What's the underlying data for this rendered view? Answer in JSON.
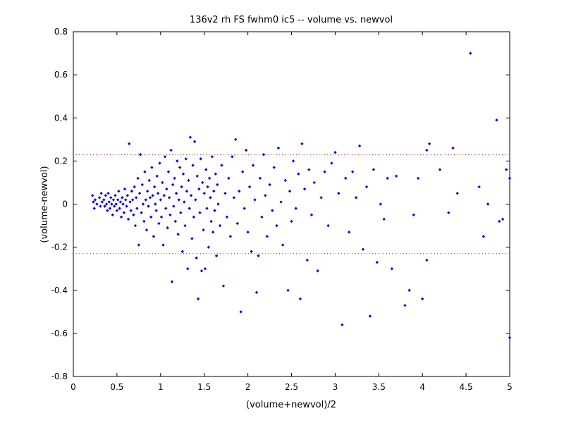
{
  "chart_data": {
    "type": "scatter",
    "title": "136v2 rh FS fwhm0 ic5 -- volume vs. newvol",
    "xlabel": "(volume+newvol)/2",
    "ylabel": "(volume-newvol)",
    "xlim": [
      0,
      5
    ],
    "ylim": [
      -0.8,
      0.8
    ],
    "xticks": [
      0,
      0.5,
      1,
      1.5,
      2,
      2.5,
      3,
      3.5,
      4,
      4.5,
      5
    ],
    "xtick_labels": [
      "0",
      "0.5",
      "1",
      "1.5",
      "2",
      "2.5",
      "3",
      "3.5",
      "4",
      "4.5",
      "5"
    ],
    "yticks": [
      -0.8,
      -0.6,
      -0.4,
      -0.2,
      0,
      0.2,
      0.4,
      0.6,
      0.8
    ],
    "ytick_labels": [
      "-0.8",
      "-0.6",
      "-0.4",
      "-0.2",
      "0",
      "0.2",
      "0.4",
      "0.6",
      "0.8"
    ],
    "grid": false,
    "marker_color": "#0000ff",
    "reference_lines": [
      {
        "y": 0.23,
        "style": "dotted",
        "color": "#ff0000"
      },
      {
        "y": -0.23,
        "style": "dotted",
        "color": "#ff0000"
      }
    ],
    "series": [
      {
        "points": [
          [
            0.22,
            0.04
          ],
          [
            0.23,
            0.01
          ],
          [
            0.24,
            -0.02
          ],
          [
            0.25,
            0.02
          ],
          [
            0.27,
            0.0
          ],
          [
            0.3,
            0.03
          ],
          [
            0.31,
            -0.01
          ],
          [
            0.32,
            0.05
          ],
          [
            0.33,
            0.01
          ],
          [
            0.35,
            0.02
          ],
          [
            0.36,
            -0.01
          ],
          [
            0.37,
            0.04
          ],
          [
            0.38,
            0.0
          ],
          [
            0.39,
            -0.03
          ],
          [
            0.4,
            0.05
          ],
          [
            0.41,
            0.01
          ],
          [
            0.42,
            -0.02
          ],
          [
            0.43,
            0.03
          ],
          [
            0.44,
            0.0
          ],
          [
            0.45,
            -0.05
          ],
          [
            0.46,
            0.02
          ],
          [
            0.47,
            -0.01
          ],
          [
            0.48,
            0.04
          ],
          [
            0.49,
            0.0
          ],
          [
            0.5,
            -0.03
          ],
          [
            0.51,
            0.02
          ],
          [
            0.52,
            0.06
          ],
          [
            0.53,
            -0.02
          ],
          [
            0.54,
            0.01
          ],
          [
            0.55,
            -0.06
          ],
          [
            0.56,
            0.03
          ],
          [
            0.57,
            0.0
          ],
          [
            0.58,
            -0.04
          ],
          [
            0.59,
            0.07
          ],
          [
            0.6,
            0.02
          ],
          [
            0.61,
            -0.01
          ],
          [
            0.62,
            0.04
          ],
          [
            0.63,
            -0.07
          ],
          [
            0.64,
            0.28
          ],
          [
            0.65,
            0.01
          ],
          [
            0.66,
            -0.03
          ],
          [
            0.67,
            0.06
          ],
          [
            0.68,
            0.02
          ],
          [
            0.69,
            -0.05
          ],
          [
            0.7,
            0.08
          ],
          [
            0.71,
            -0.1
          ],
          [
            0.72,
            0.03
          ],
          [
            0.73,
            -0.02
          ],
          [
            0.74,
            0.12
          ],
          [
            0.75,
            -0.19
          ],
          [
            0.76,
            0.05
          ],
          [
            0.77,
            0.23
          ],
          [
            0.78,
            -0.04
          ],
          [
            0.79,
            0.09
          ],
          [
            0.8,
            0.0
          ],
          [
            0.81,
            -0.08
          ],
          [
            0.82,
            0.15
          ],
          [
            0.83,
            0.02
          ],
          [
            0.84,
            -0.12
          ],
          [
            0.85,
            0.06
          ],
          [
            0.86,
            -0.01
          ],
          [
            0.87,
            0.11
          ],
          [
            0.88,
            0.03
          ],
          [
            0.89,
            -0.06
          ],
          [
            0.9,
            0.17
          ],
          [
            0.91,
            0.04
          ],
          [
            0.92,
            -0.15
          ],
          [
            0.93,
            0.08
          ],
          [
            0.94,
            0.0
          ],
          [
            0.95,
            -0.03
          ],
          [
            0.96,
            0.13
          ],
          [
            0.97,
            0.05
          ],
          [
            0.98,
            -0.09
          ],
          [
            0.99,
            0.19
          ],
          [
            1.0,
            0.02
          ],
          [
            1.01,
            -0.06
          ],
          [
            1.02,
            0.1
          ],
          [
            1.03,
            -0.19
          ],
          [
            1.04,
            0.04
          ],
          [
            1.05,
            0.22
          ],
          [
            1.06,
            -0.02
          ],
          [
            1.07,
            0.07
          ],
          [
            1.08,
            -0.11
          ],
          [
            1.09,
            0.15
          ],
          [
            1.1,
            0.03
          ],
          [
            1.11,
            -0.05
          ],
          [
            1.12,
            0.25
          ],
          [
            1.13,
            -0.36
          ],
          [
            1.14,
            0.09
          ],
          [
            1.15,
            -0.01
          ],
          [
            1.16,
            0.12
          ],
          [
            1.17,
            -0.08
          ],
          [
            1.18,
            0.05
          ],
          [
            1.19,
            0.2
          ],
          [
            1.2,
            -0.14
          ],
          [
            1.21,
            0.02
          ],
          [
            1.22,
            0.17
          ],
          [
            1.23,
            -0.04
          ],
          [
            1.24,
            0.08
          ],
          [
            1.25,
            -0.22
          ],
          [
            1.26,
            0.14
          ],
          [
            1.27,
            0.01
          ],
          [
            1.28,
            -0.1
          ],
          [
            1.29,
            0.21
          ],
          [
            1.3,
            0.06
          ],
          [
            1.31,
            -0.3
          ],
          [
            1.32,
            0.11
          ],
          [
            1.33,
            -0.02
          ],
          [
            1.34,
            0.31
          ],
          [
            1.35,
            0.04
          ],
          [
            1.36,
            -0.16
          ],
          [
            1.37,
            0.18
          ],
          [
            1.38,
            -0.06
          ],
          [
            1.39,
            0.29
          ],
          [
            1.4,
            0.02
          ],
          [
            1.41,
            -0.25
          ],
          [
            1.42,
            0.13
          ],
          [
            1.43,
            -0.44
          ],
          [
            1.44,
            0.07
          ],
          [
            1.45,
            -0.04
          ],
          [
            1.46,
            0.21
          ],
          [
            1.47,
            -0.31
          ],
          [
            1.48,
            0.1
          ],
          [
            1.49,
            -0.12
          ],
          [
            1.5,
            0.05
          ],
          [
            1.51,
            -0.3
          ],
          [
            1.52,
            0.16
          ],
          [
            1.53,
            -0.02
          ],
          [
            1.54,
            0.08
          ],
          [
            1.55,
            -0.2
          ],
          [
            1.56,
            0.12
          ],
          [
            1.57,
            0.03
          ],
          [
            1.58,
            -0.08
          ],
          [
            1.59,
            0.22
          ],
          [
            1.6,
            -0.13
          ],
          [
            1.61,
            0.06
          ],
          [
            1.62,
            -0.03
          ],
          [
            1.63,
            0.14
          ],
          [
            1.64,
            -0.24
          ],
          [
            1.65,
            0.09
          ],
          [
            1.66,
            0.0
          ],
          [
            1.68,
            -0.1
          ],
          [
            1.7,
            0.18
          ],
          [
            1.72,
            -0.38
          ],
          [
            1.74,
            0.05
          ],
          [
            1.76,
            -0.06
          ],
          [
            1.78,
            0.12
          ],
          [
            1.8,
            -0.15
          ],
          [
            1.82,
            0.22
          ],
          [
            1.84,
            0.03
          ],
          [
            1.86,
            0.3
          ],
          [
            1.88,
            -0.09
          ],
          [
            1.9,
            0.06
          ],
          [
            1.92,
            -0.5
          ],
          [
            1.94,
            0.15
          ],
          [
            1.96,
            -0.02
          ],
          [
            1.98,
            0.25
          ],
          [
            2.0,
            -0.13
          ],
          [
            2.02,
            0.08
          ],
          [
            2.04,
            -0.22
          ],
          [
            2.06,
            0.18
          ],
          [
            2.08,
            0.02
          ],
          [
            2.1,
            -0.41
          ],
          [
            2.12,
            -0.24
          ],
          [
            2.14,
            0.12
          ],
          [
            2.16,
            -0.06
          ],
          [
            2.18,
            0.23
          ],
          [
            2.2,
            0.04
          ],
          [
            2.22,
            -0.15
          ],
          [
            2.25,
            0.09
          ],
          [
            2.28,
            -0.03
          ],
          [
            2.3,
            0.17
          ],
          [
            2.33,
            -0.1
          ],
          [
            2.35,
            0.26
          ],
          [
            2.38,
            0.01
          ],
          [
            2.4,
            -0.19
          ],
          [
            2.43,
            0.11
          ],
          [
            2.46,
            -0.4
          ],
          [
            2.48,
            0.06
          ],
          [
            2.5,
            -0.08
          ],
          [
            2.52,
            0.2
          ],
          [
            2.55,
            -0.02
          ],
          [
            2.58,
            0.14
          ],
          [
            2.6,
            -0.44
          ],
          [
            2.62,
            0.28
          ],
          [
            2.65,
            0.07
          ],
          [
            2.68,
            -0.26
          ],
          [
            2.7,
            0.16
          ],
          [
            2.73,
            -0.05
          ],
          [
            2.76,
            0.1
          ],
          [
            2.8,
            -0.31
          ],
          [
            2.84,
            0.03
          ],
          [
            2.88,
            0.15
          ],
          [
            2.92,
            -0.1
          ],
          [
            2.96,
            0.19
          ],
          [
            3.0,
            0.24
          ],
          [
            3.04,
            0.05
          ],
          [
            3.08,
            -0.56
          ],
          [
            3.12,
            0.12
          ],
          [
            3.16,
            -0.13
          ],
          [
            3.2,
            0.15
          ],
          [
            3.24,
            0.03
          ],
          [
            3.28,
            0.27
          ],
          [
            3.32,
            -0.21
          ],
          [
            3.36,
            0.08
          ],
          [
            3.4,
            -0.52
          ],
          [
            3.44,
            0.16
          ],
          [
            3.48,
            -0.27
          ],
          [
            3.52,
            0.0
          ],
          [
            3.56,
            -0.07
          ],
          [
            3.6,
            0.12
          ],
          [
            3.65,
            -0.3
          ],
          [
            3.7,
            0.13
          ],
          [
            3.8,
            -0.47
          ],
          [
            3.85,
            -0.4
          ],
          [
            3.9,
            -0.05
          ],
          [
            3.95,
            0.12
          ],
          [
            4.0,
            -0.44
          ],
          [
            4.05,
            0.25
          ],
          [
            4.08,
            0.28
          ],
          [
            4.05,
            -0.26
          ],
          [
            4.2,
            0.16
          ],
          [
            4.3,
            -0.04
          ],
          [
            4.35,
            0.26
          ],
          [
            4.4,
            0.05
          ],
          [
            4.55,
            0.7
          ],
          [
            4.65,
            0.08
          ],
          [
            4.7,
            -0.15
          ],
          [
            4.75,
            0.0
          ],
          [
            4.85,
            0.39
          ],
          [
            4.88,
            -0.08
          ],
          [
            4.92,
            -0.07
          ],
          [
            4.96,
            0.16
          ],
          [
            5.0,
            0.12
          ],
          [
            5.0,
            -0.62
          ]
        ]
      }
    ]
  }
}
